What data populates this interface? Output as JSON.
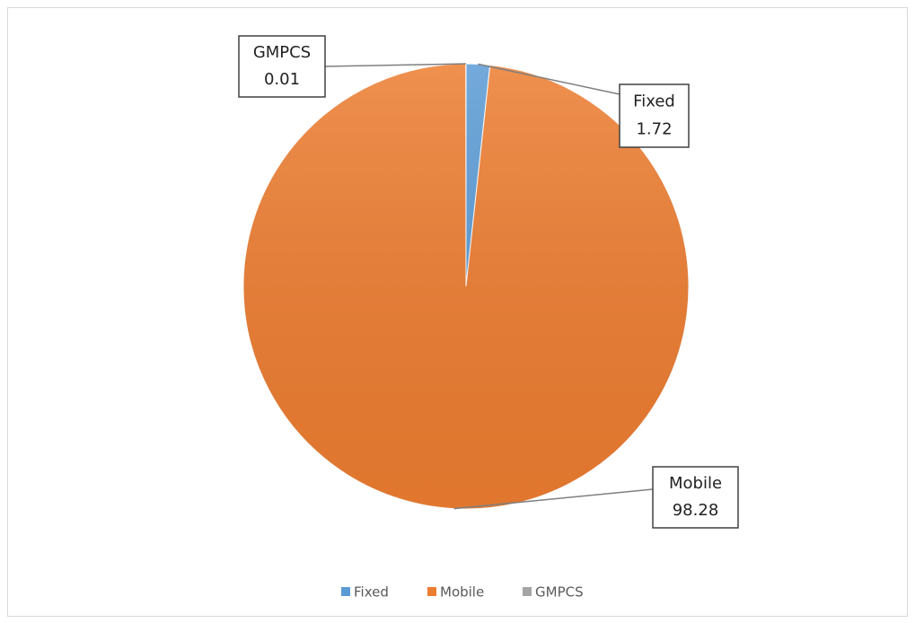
{
  "chart_data": {
    "type": "pie",
    "categories": [
      "Fixed",
      "Mobile",
      "GMPCS"
    ],
    "values": [
      1.72,
      98.28,
      0.01
    ],
    "colors": [
      "#5b9bd5",
      "#ed7d31",
      "#a5a5a5"
    ],
    "legend": "bottom"
  }
}
